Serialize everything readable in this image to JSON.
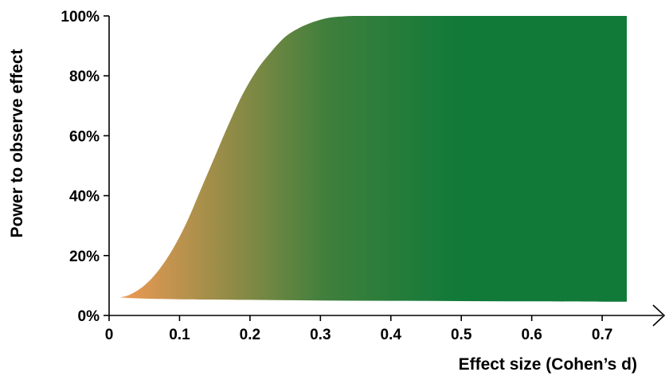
{
  "chart_data": {
    "type": "area",
    "title": "",
    "xlabel": "Effect size (Cohen’s d)",
    "ylabel": "Power to observe effect",
    "xlim": [
      0,
      0.77
    ],
    "ylim": [
      0,
      100
    ],
    "x_ticks": [
      {
        "value": 0,
        "label": "0"
      },
      {
        "value": 0.1,
        "label": "0.1"
      },
      {
        "value": 0.2,
        "label": "0.2"
      },
      {
        "value": 0.3,
        "label": "0.3"
      },
      {
        "value": 0.4,
        "label": "0.4"
      },
      {
        "value": 0.5,
        "label": "0.5"
      },
      {
        "value": 0.6,
        "label": "0.6"
      },
      {
        "value": 0.7,
        "label": "0.7"
      }
    ],
    "y_ticks": [
      {
        "value": 0,
        "label": "0%"
      },
      {
        "value": 20,
        "label": "20%"
      },
      {
        "value": 40,
        "label": "40%"
      },
      {
        "value": 60,
        "label": "60%"
      },
      {
        "value": 80,
        "label": "80%"
      },
      {
        "value": 100,
        "label": "100%"
      }
    ],
    "upper": {
      "x": [
        0.015,
        0.03,
        0.05,
        0.07,
        0.09,
        0.11,
        0.13,
        0.15,
        0.17,
        0.19,
        0.21,
        0.23,
        0.25,
        0.27,
        0.29,
        0.31,
        0.33,
        0.35,
        0.4,
        0.5,
        0.6,
        0.7,
        0.735
      ],
      "y": [
        6,
        7,
        10,
        15,
        22,
        31,
        42,
        53,
        64,
        74,
        82,
        88,
        93,
        96,
        98,
        99.3,
        99.8,
        100,
        100,
        100,
        100,
        100,
        100
      ]
    },
    "lower": {
      "x": [
        0.015,
        0.05,
        0.1,
        0.2,
        0.3,
        0.4,
        0.5,
        0.6,
        0.7,
        0.735
      ],
      "y": [
        6,
        5.6,
        5.4,
        5.2,
        5.0,
        4.9,
        4.8,
        4.7,
        4.6,
        4.6
      ]
    },
    "gradient": {
      "start": "#ef9a54",
      "mid": "#3f7f3c",
      "end": "#117a39"
    },
    "grid": false,
    "legend": "none"
  }
}
